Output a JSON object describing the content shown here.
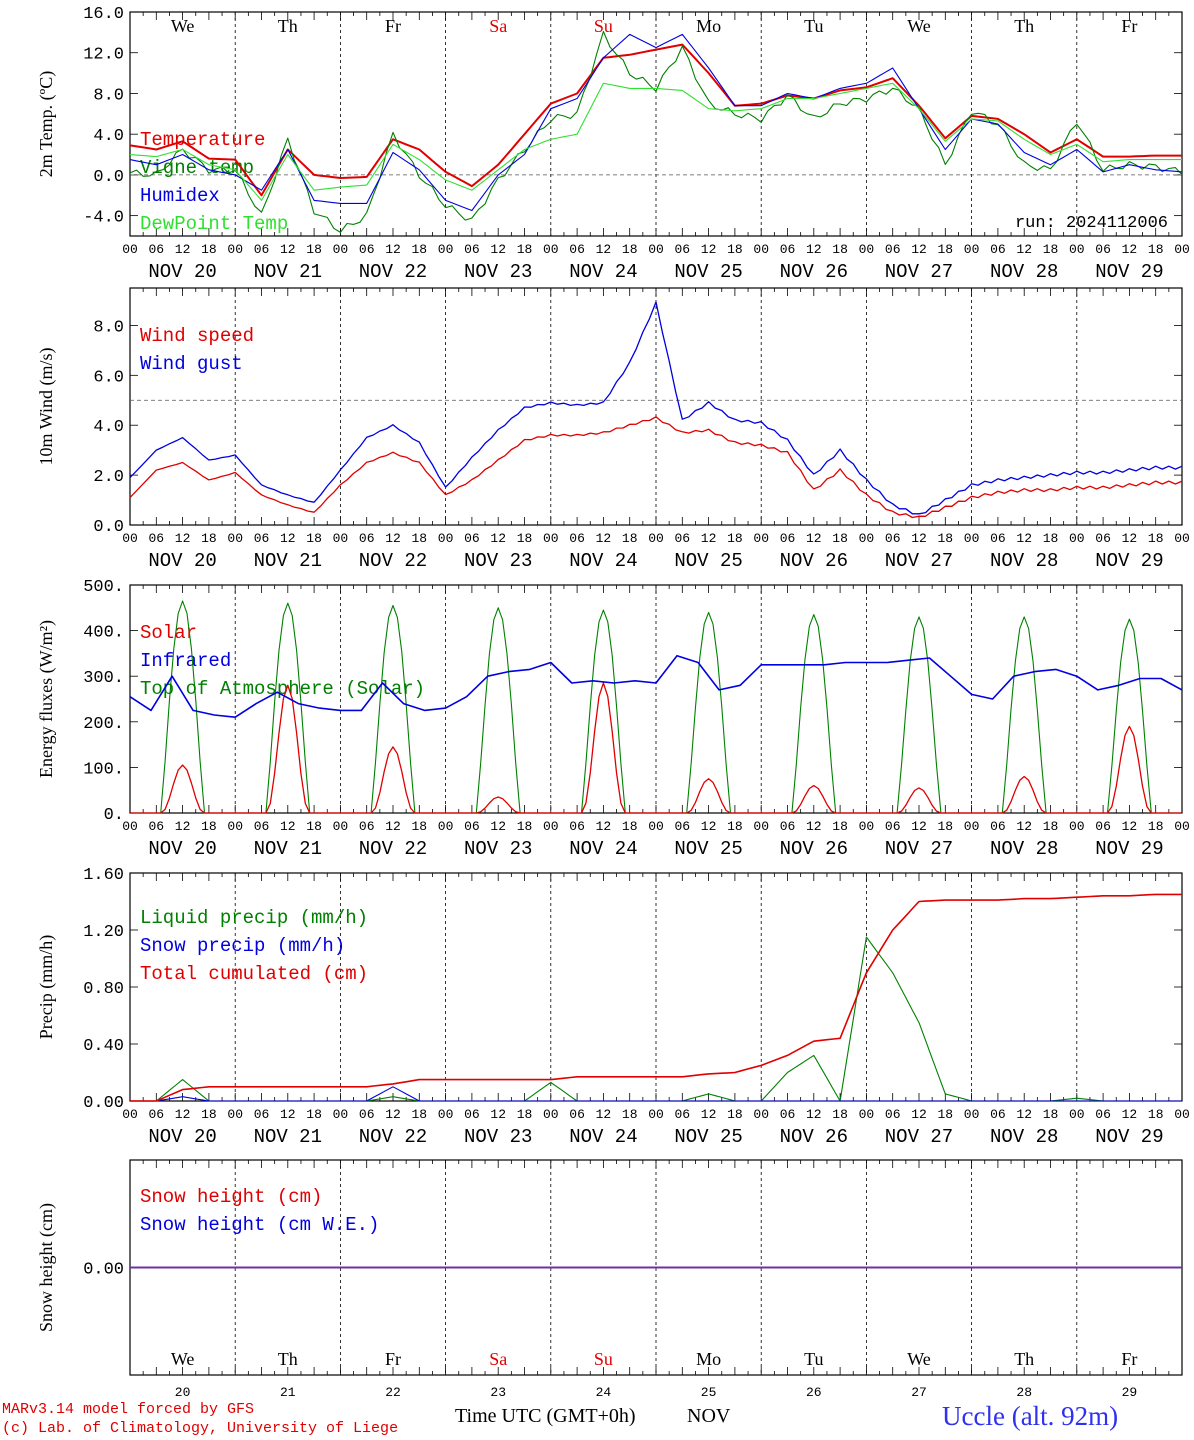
{
  "footer": {
    "model_line": "MARv3.14 model forced by GFS",
    "copyright_line": "(c) Lab. of Climatology, University of Liege",
    "x_axis_title": "Time UTC (GMT+0h)",
    "month_label": "NOV",
    "station": "Uccle (alt. 92m)"
  },
  "colors": {
    "red": "#e00000",
    "blue": "#0000e0",
    "green": "#008000",
    "lightgreen": "#30e030",
    "purple": "#7030a0",
    "grey": "#555555"
  },
  "days": {
    "weekdays": [
      "We",
      "Th",
      "Fr",
      "Sa",
      "Su",
      "Mo",
      "Tu",
      "We",
      "Th",
      "Fr"
    ],
    "weekend_flags": [
      false,
      false,
      false,
      true,
      true,
      false,
      false,
      false,
      false,
      false
    ],
    "date_labels": [
      "NOV 20",
      "NOV 21",
      "NOV 22",
      "NOV 23",
      "NOV 24",
      "NOV 25",
      "NOV 26",
      "NOV 27",
      "NOV 28",
      "NOV 29"
    ],
    "day_numbers": [
      "20",
      "21",
      "22",
      "23",
      "24",
      "25",
      "26",
      "27",
      "28",
      "29"
    ],
    "hour_ticks": [
      "00",
      "06",
      "12",
      "18"
    ],
    "final_tick": "00"
  },
  "chart_data": [
    {
      "type": "line",
      "ylabel": "2m Temp. (ºC)",
      "ylim": [
        -6,
        16
      ],
      "yticks": [
        "16.0",
        "12.0",
        "8.0",
        "4.0",
        "0.0",
        "-4.0"
      ],
      "ytick_values": [
        16,
        12,
        8,
        4,
        0,
        -4
      ],
      "reference_line": 0,
      "annotation": "run: 2024112006",
      "x_hours": [
        0,
        6,
        12,
        18,
        24,
        30,
        36,
        42,
        48,
        54,
        60,
        66,
        72,
        78,
        84,
        90,
        96,
        102,
        108,
        114,
        120,
        126,
        132,
        138,
        144,
        150,
        156,
        162,
        168,
        174,
        180,
        186,
        192,
        198,
        204,
        210,
        216,
        222,
        228,
        234,
        240
      ],
      "series": [
        {
          "name": "Temperature",
          "color": "red",
          "values": [
            2.9,
            2.5,
            3.3,
            1.6,
            1.5,
            -2.0,
            2.5,
            0.0,
            -0.3,
            -0.2,
            3.5,
            2.5,
            0.3,
            -1.1,
            1.0,
            4.0,
            7.0,
            8.0,
            11.5,
            11.8,
            12.3,
            12.8,
            10.0,
            6.8,
            7.0,
            7.8,
            7.5,
            8.3,
            8.6,
            9.5,
            6.8,
            3.6,
            5.8,
            5.5,
            4.0,
            2.2,
            3.5,
            1.8,
            1.8,
            1.9,
            1.9
          ]
        },
        {
          "name": "Vigne temp",
          "color": "green",
          "values": [
            0.2,
            0.0,
            2.5,
            0.5,
            0.5,
            -4.0,
            3.5,
            -3.5,
            -5.5,
            -4.0,
            4.0,
            0.0,
            -3.0,
            -4.5,
            -0.5,
            2.5,
            5.5,
            6.0,
            13.8,
            10.0,
            8.5,
            12.5,
            7.0,
            6.0,
            5.5,
            7.8,
            5.5,
            7.0,
            7.5,
            8.5,
            6.5,
            1.0,
            6.3,
            5.0,
            1.0,
            0.5,
            5.3,
            0.5,
            1.0,
            0.8,
            0.3
          ]
        },
        {
          "name": "Humidex",
          "color": "blue",
          "values": [
            1.5,
            1.0,
            2.0,
            0.5,
            0.0,
            -1.5,
            2.5,
            -2.5,
            -2.8,
            -2.8,
            2.2,
            0.5,
            -2.5,
            -3.5,
            0.0,
            2.0,
            6.5,
            7.5,
            11.5,
            13.8,
            12.5,
            13.8,
            10.5,
            6.8,
            6.8,
            8.0,
            7.5,
            8.5,
            9.0,
            10.5,
            6.5,
            2.5,
            5.5,
            5.0,
            2.2,
            1.0,
            2.5,
            0.3,
            1.0,
            0.5,
            0.3
          ]
        },
        {
          "name": "DewPoint Temp",
          "color": "lightgreen",
          "values": [
            2.0,
            1.8,
            2.5,
            1.0,
            0.5,
            -2.5,
            2.0,
            -1.5,
            -1.2,
            -1.0,
            3.0,
            1.5,
            -0.5,
            -1.5,
            0.5,
            2.5,
            3.5,
            4.0,
            9.0,
            8.5,
            8.5,
            8.3,
            6.5,
            6.3,
            6.5,
            7.5,
            7.5,
            8.0,
            8.5,
            9.0,
            6.5,
            3.3,
            5.5,
            5.3,
            3.5,
            2.0,
            3.0,
            1.3,
            1.5,
            1.5,
            1.5
          ]
        }
      ],
      "legend": "top-left"
    },
    {
      "type": "line",
      "ylabel": "10m Wind (m/s)",
      "ylim": [
        0,
        9.5
      ],
      "yticks": [
        "8.0",
        "6.0",
        "4.0",
        "2.0",
        "0.0"
      ],
      "ytick_values": [
        8,
        6,
        4,
        2,
        0
      ],
      "reference_line": 5,
      "x_hours": [
        0,
        6,
        12,
        18,
        24,
        30,
        36,
        42,
        48,
        54,
        60,
        66,
        72,
        78,
        84,
        90,
        96,
        102,
        108,
        114,
        120,
        126,
        132,
        138,
        144,
        150,
        156,
        162,
        168,
        174,
        180,
        186,
        192,
        198,
        204,
        210,
        216,
        222,
        228,
        234,
        240
      ],
      "series": [
        {
          "name": "Wind speed",
          "color": "red",
          "values": [
            1.1,
            2.2,
            2.5,
            1.8,
            2.1,
            1.2,
            0.8,
            0.5,
            1.6,
            2.5,
            2.9,
            2.5,
            1.2,
            1.8,
            2.6,
            3.4,
            3.6,
            3.6,
            3.7,
            4.0,
            4.3,
            3.7,
            3.8,
            3.3,
            3.2,
            2.9,
            1.4,
            2.2,
            1.2,
            0.5,
            0.3,
            0.7,
            1.1,
            1.3,
            1.4,
            1.4,
            1.5,
            1.5,
            1.6,
            1.7,
            1.7
          ]
        },
        {
          "name": "Wind gust",
          "color": "blue",
          "values": [
            1.9,
            3.0,
            3.5,
            2.6,
            2.8,
            1.6,
            1.2,
            0.9,
            2.2,
            3.5,
            4.0,
            3.3,
            1.5,
            2.7,
            3.8,
            4.7,
            4.9,
            4.8,
            4.9,
            6.5,
            8.9,
            4.2,
            4.9,
            4.2,
            4.1,
            3.4,
            2.0,
            3.0,
            1.8,
            0.8,
            0.4,
            1.0,
            1.6,
            1.8,
            1.9,
            2.0,
            2.1,
            2.1,
            2.2,
            2.3,
            2.3
          ]
        }
      ],
      "legend": "top-left"
    },
    {
      "type": "line",
      "ylabel": "Energy fluxes (W/m²)",
      "ylim": [
        0,
        500
      ],
      "yticks": [
        "500.",
        "400.",
        "300.",
        "200.",
        "100.",
        "0."
      ],
      "ytick_values": [
        500,
        400,
        300,
        200,
        100,
        0
      ],
      "series": [
        {
          "name": "Solar",
          "color": "red",
          "daily_peaks": [
            105,
            280,
            145,
            35,
            285,
            75,
            60,
            55,
            80,
            190
          ]
        },
        {
          "name": "Infrared",
          "color": "blue",
          "values_6h": [
            255,
            225,
            300,
            225,
            215,
            210,
            240,
            265,
            240,
            230,
            225,
            225,
            285,
            240,
            225,
            230,
            255,
            300,
            310,
            315,
            330,
            285,
            290,
            285,
            290,
            285,
            345,
            330,
            270,
            280,
            325,
            325,
            325,
            325,
            330,
            330,
            330,
            335,
            340,
            300,
            260,
            250,
            300,
            310,
            315,
            300,
            270,
            280,
            295,
            295,
            270
          ]
        },
        {
          "name": "Top of Atmosphere (Solar)",
          "color": "green",
          "daily_peaks": [
            465,
            460,
            455,
            450,
            445,
            440,
            435,
            430,
            430,
            425
          ]
        }
      ],
      "legend": "top-left"
    },
    {
      "type": "line",
      "ylabel": "Precip (mm/h)",
      "ylim": [
        0,
        1.6
      ],
      "yticks": [
        "1.60",
        "1.20",
        "0.80",
        "0.40",
        "0.00"
      ],
      "ytick_values": [
        1.6,
        1.2,
        0.8,
        0.4,
        0.0
      ],
      "x_hours": [
        0,
        6,
        12,
        18,
        24,
        30,
        36,
        42,
        48,
        54,
        60,
        66,
        72,
        78,
        84,
        90,
        96,
        102,
        108,
        114,
        120,
        126,
        132,
        138,
        144,
        150,
        156,
        162,
        168,
        174,
        180,
        186,
        192,
        198,
        204,
        210,
        216,
        222,
        228,
        234,
        240
      ],
      "series": [
        {
          "name": "Liquid precip (mm/h)",
          "color": "green",
          "values": [
            0.0,
            0.0,
            0.15,
            0.0,
            0.0,
            0.0,
            0.0,
            0.0,
            0.0,
            0.0,
            0.03,
            0.0,
            0.0,
            0.0,
            0.0,
            0.0,
            0.13,
            0.0,
            0.0,
            0.0,
            0.0,
            0.0,
            0.05,
            0.0,
            0.0,
            0.2,
            0.32,
            0.0,
            1.15,
            0.9,
            0.55,
            0.05,
            0.0,
            0.0,
            0.0,
            0.0,
            0.02,
            0.0,
            0.0,
            0.0,
            0.0
          ]
        },
        {
          "name": "Snow precip (mm/h)",
          "color": "blue",
          "values": [
            0.0,
            0.0,
            0.03,
            0.0,
            0.0,
            0.0,
            0.0,
            0.0,
            0.0,
            0.0,
            0.1,
            0.0,
            0.0,
            0.0,
            0.0,
            0.0,
            0.0,
            0.0,
            0.0,
            0.0,
            0.0,
            0.0,
            0.0,
            0.0,
            0.0,
            0.0,
            0.0,
            0.0,
            0.0,
            0.0,
            0.0,
            0.0,
            0.0,
            0.0,
            0.0,
            0.0,
            0.0,
            0.0,
            0.0,
            0.0,
            0.0
          ]
        },
        {
          "name": "Total cumulated (cm)",
          "color": "red",
          "values": [
            0.0,
            0.0,
            0.08,
            0.1,
            0.1,
            0.1,
            0.1,
            0.1,
            0.1,
            0.1,
            0.12,
            0.15,
            0.15,
            0.15,
            0.15,
            0.15,
            0.15,
            0.17,
            0.17,
            0.17,
            0.17,
            0.17,
            0.19,
            0.2,
            0.25,
            0.32,
            0.42,
            0.44,
            0.9,
            1.2,
            1.4,
            1.41,
            1.41,
            1.41,
            1.42,
            1.42,
            1.43,
            1.44,
            1.44,
            1.45,
            1.45
          ]
        }
      ],
      "legend": "top-left"
    },
    {
      "type": "line",
      "ylabel": "Snow height (cm)",
      "ylim": [
        -1,
        1
      ],
      "yticks": [
        "0.00"
      ],
      "ytick_values": [
        0
      ],
      "series": [
        {
          "name": "Snow height (cm)",
          "color": "red",
          "values": [
            0,
            0
          ]
        },
        {
          "name": "Snow height (cm W.E.)",
          "color": "blue",
          "values": [
            0,
            0
          ]
        }
      ],
      "legend": "top-left"
    }
  ]
}
